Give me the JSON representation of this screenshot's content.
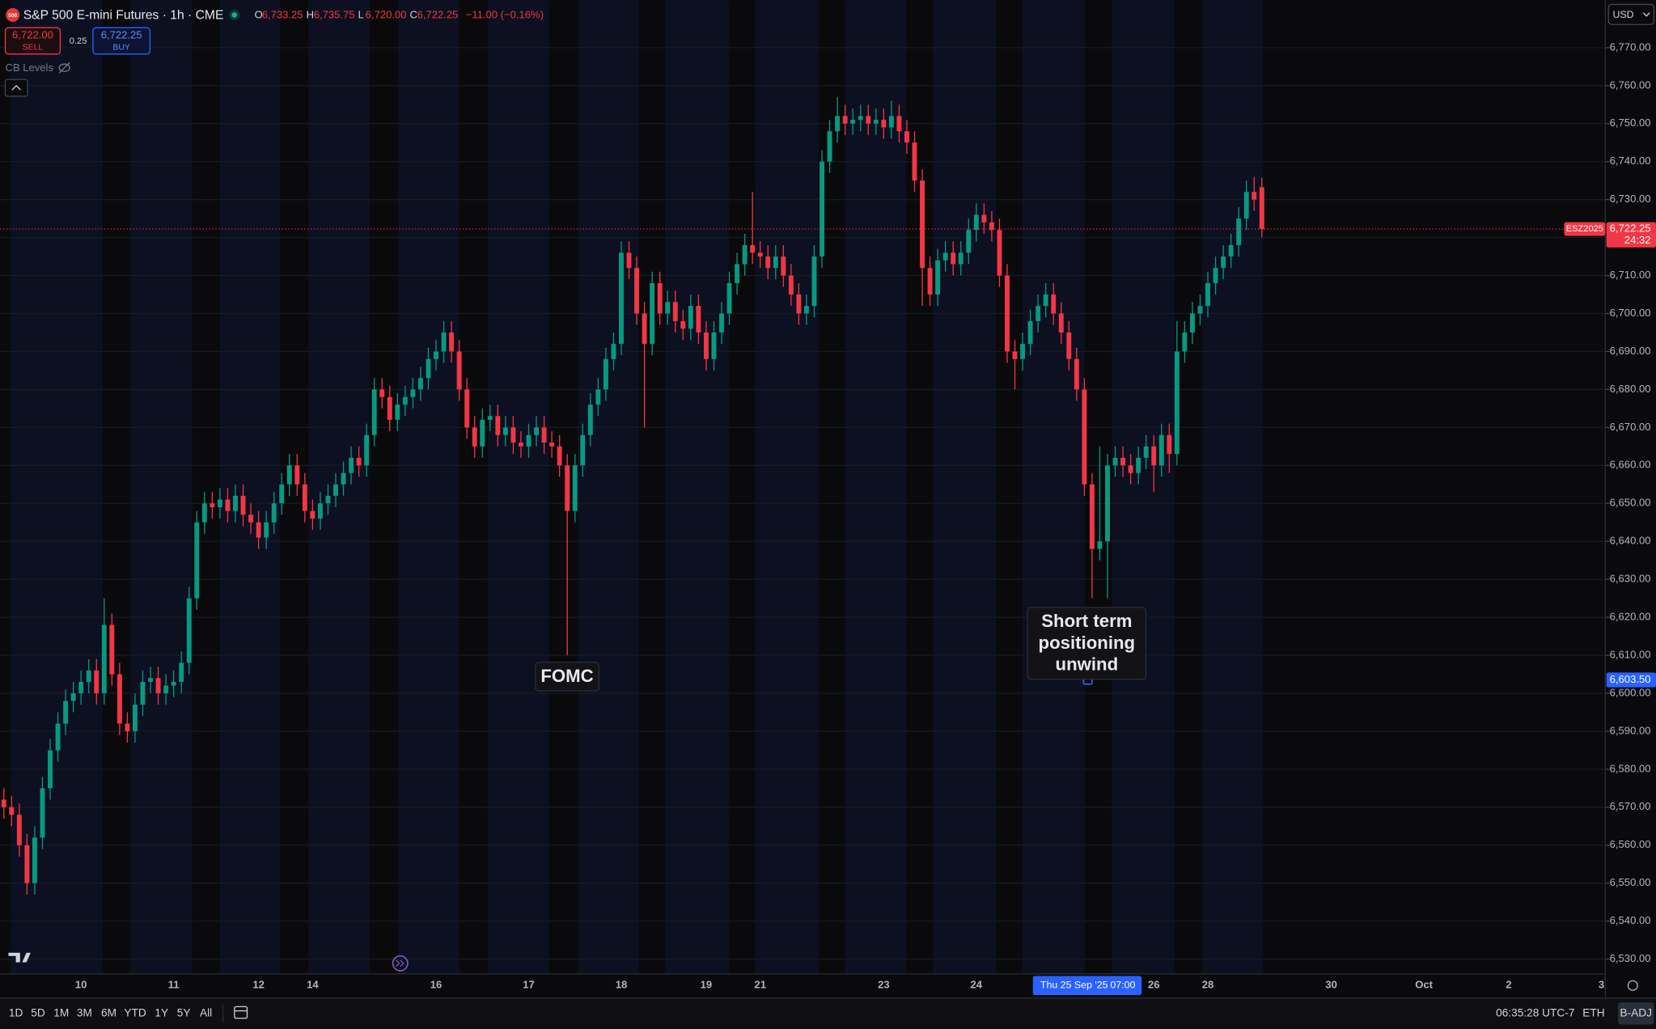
{
  "ui": {
    "title": "S&P 500 E-mini Futures · 1h · CME",
    "ohlc": [
      {
        "k": "O",
        "v": "6,733.25"
      },
      {
        "k": "H",
        "v": "6,735.75"
      },
      {
        "k": "L",
        "v": "6,720.00"
      },
      {
        "k": "C",
        "v": "6,722.25"
      }
    ],
    "change": "−11.00 (−0.16%)",
    "sell_price": "6,722.00",
    "sell": "SELL",
    "spread": "0.25",
    "buy_price": "6,722.25",
    "buy": "BUY",
    "indicator": "CB Levels",
    "currency": "USD",
    "ranges": [
      "1D",
      "5D",
      "1M",
      "3M",
      "6M",
      "YTD",
      "1Y",
      "5Y",
      "All"
    ],
    "clock": "06:35:28 UTC-7",
    "session": "ETH",
    "adjust": "B-ADJ",
    "logo_badge": "500"
  },
  "chart_data": {
    "type": "candlestick",
    "up_color": "#089981",
    "down_color": "#f23645",
    "categories": [
      null,
      null,
      null,
      null,
      null,
      null,
      null,
      null,
      null,
      null,
      "10",
      null,
      null,
      null,
      null,
      null,
      null,
      null,
      null,
      null,
      null,
      null,
      "11",
      null,
      null,
      null,
      null,
      null,
      null,
      null,
      null,
      null,
      null,
      "12",
      null,
      null,
      null,
      null,
      null,
      null,
      "14",
      null,
      null,
      null,
      null,
      null,
      null,
      null,
      null,
      null,
      null,
      null,
      null,
      null,
      null,
      null,
      "16",
      null,
      null,
      null,
      null,
      null,
      null,
      null,
      null,
      null,
      null,
      null,
      "17",
      null,
      null,
      null,
      null,
      null,
      null,
      null,
      null,
      null,
      null,
      null,
      "18",
      null,
      null,
      null,
      null,
      null,
      null,
      null,
      null,
      null,
      null,
      "19",
      null,
      null,
      null,
      null,
      null,
      null,
      "21",
      null,
      null,
      null,
      null,
      null,
      null,
      null,
      null,
      null,
      null,
      null,
      null,
      null,
      null,
      null,
      "23",
      null,
      null,
      null,
      null,
      null,
      null,
      null,
      null,
      null,
      null,
      null,
      "24",
      null,
      null,
      null,
      null,
      null,
      null,
      null,
      null,
      null,
      null,
      null,
      null,
      null,
      null,
      null,
      null,
      null,
      null,
      null,
      null,
      null,
      null,
      "26",
      null,
      null,
      null,
      null,
      null,
      null,
      "28",
      null,
      null,
      null,
      null,
      null,
      null,
      null
    ],
    "future_categories": [
      null,
      null,
      null,
      null,
      null,
      null,
      null,
      null,
      "30",
      null,
      null,
      null,
      null,
      null,
      null,
      null,
      null,
      null,
      null,
      null,
      "Oct",
      null,
      null,
      null,
      null,
      null,
      null,
      null,
      null,
      null,
      null,
      "2",
      null,
      null,
      null,
      null,
      null,
      null,
      null,
      null,
      null,
      null,
      null,
      "3"
    ],
    "open": [
      6572,
      6570,
      6568,
      6560,
      6550,
      6562,
      6575,
      6585,
      6592,
      6598,
      6600,
      6603,
      6606,
      6600,
      6618,
      6605,
      6592,
      6590,
      6597,
      6603,
      6604,
      6600,
      6602,
      6603,
      6608,
      6625,
      6645,
      6650,
      6649,
      6651,
      6648,
      6652,
      6647,
      6645,
      6641,
      6645,
      6650,
      6655,
      6660,
      6655,
      6648,
      6646,
      6650,
      6652,
      6655,
      6658,
      6662,
      6660,
      6668,
      6680,
      6678,
      6672,
      6676,
      6678,
      6680,
      6683,
      6688,
      6690,
      6695,
      6690,
      6680,
      6670,
      6665,
      6672,
      6673,
      6668,
      6670,
      6666,
      6665,
      6668,
      6670,
      6666,
      6665,
      6660,
      6648,
      6660,
      6668,
      6676,
      6680,
      6688,
      6692,
      6716,
      6712,
      6700,
      6692,
      6708,
      6700,
      6703,
      6698,
      6696,
      6702,
      6695,
      6688,
      6695,
      6700,
      6708,
      6713,
      6718,
      6716,
      6715,
      6712,
      6715,
      6710,
      6705,
      6700,
      6702,
      6715,
      6740,
      6748,
      6752,
      6750,
      6751,
      6752,
      6750,
      6751,
      6749,
      6752,
      6748,
      6745,
      6735,
      6712,
      6705,
      6714,
      6716,
      6713,
      6716,
      6722,
      6726,
      6724,
      6722,
      6710,
      6690,
      6688,
      6692,
      6698,
      6702,
      6705,
      6700,
      6695,
      6688,
      6680,
      6655,
      6638,
      6640,
      6660,
      6662,
      6660,
      6658,
      6662,
      6665,
      6660,
      6668,
      6663,
      6690,
      6695,
      6700,
      6702,
      6708,
      6712,
      6715,
      6718,
      6725,
      6732,
      6733.25
    ],
    "high": [
      6575,
      6573,
      6571,
      6563,
      6565,
      6578,
      6588,
      6595,
      6601,
      6603,
      6606,
      6609,
      6609,
      6625,
      6621,
      6608,
      6595,
      6600,
      6606,
      6607,
      6607,
      6605,
      6606,
      6611,
      6628,
      6648,
      6653,
      6653,
      6654,
      6654,
      6655,
      6655,
      6650,
      6648,
      6648,
      6653,
      6658,
      6663,
      6663,
      6658,
      6651,
      6653,
      6655,
      6658,
      6661,
      6665,
      6665,
      6671,
      6683,
      6683,
      6681,
      6679,
      6681,
      6683,
      6686,
      6691,
      6693,
      6698,
      6698,
      6693,
      6683,
      6673,
      6675,
      6676,
      6676,
      6673,
      6673,
      6669,
      6671,
      6673,
      6673,
      6669,
      6668,
      6663,
      6663,
      6671,
      6679,
      6683,
      6691,
      6695,
      6719,
      6719,
      6715,
      6703,
      6711,
      6711,
      6706,
      6706,
      6701,
      6705,
      6705,
      6698,
      6698,
      6703,
      6711,
      6716,
      6721,
      6732,
      6719,
      6718,
      6718,
      6718,
      6713,
      6708,
      6705,
      6718,
      6743,
      6751,
      6757,
      6755,
      6754,
      6755,
      6755,
      6754,
      6754,
      6756,
      6755,
      6751,
      6748,
      6738,
      6715,
      6717,
      6719,
      6719,
      6719,
      6725,
      6729,
      6729,
      6727,
      6725,
      6713,
      6693,
      6695,
      6701,
      6705,
      6708,
      6708,
      6703,
      6698,
      6691,
      6683,
      6658,
      6665,
      6663,
      6665,
      6665,
      6663,
      6665,
      6668,
      6668,
      6671,
      6671,
      6698,
      6698,
      6703,
      6705,
      6711,
      6715,
      6718,
      6721,
      6728,
      6735,
      6736,
      6735.75
    ],
    "low": [
      6567,
      6565,
      6557,
      6547,
      6547,
      6559,
      6572,
      6582,
      6589,
      6595,
      6597,
      6600,
      6597,
      6597,
      6602,
      6589,
      6587,
      6587,
      6594,
      6600,
      6597,
      6597,
      6599,
      6600,
      6605,
      6622,
      6642,
      6646,
      6646,
      6645,
      6645,
      6644,
      6642,
      6638,
      6638,
      6642,
      6647,
      6652,
      6652,
      6645,
      6643,
      6643,
      6647,
      6649,
      6652,
      6655,
      6657,
      6657,
      6665,
      6675,
      6669,
      6669,
      6673,
      6675,
      6677,
      6680,
      6685,
      6687,
      6687,
      6677,
      6667,
      6662,
      6662,
      6669,
      6665,
      6665,
      6663,
      6662,
      6662,
      6665,
      6663,
      6662,
      6657,
      6610,
      6645,
      6657,
      6665,
      6673,
      6677,
      6685,
      6689,
      6709,
      6697,
      6670,
      6689,
      6697,
      6697,
      6695,
      6693,
      6693,
      6692,
      6685,
      6685,
      6692,
      6697,
      6705,
      6710,
      6713,
      6712,
      6709,
      6709,
      6707,
      6702,
      6697,
      6697,
      6699,
      6712,
      6737,
      6745,
      6747,
      6747,
      6748,
      6747,
      6747,
      6746,
      6746,
      6745,
      6742,
      6732,
      6702,
      6702,
      6702,
      6711,
      6710,
      6710,
      6713,
      6719,
      6721,
      6719,
      6707,
      6687,
      6680,
      6685,
      6689,
      6695,
      6699,
      6697,
      6692,
      6685,
      6677,
      6652,
      6625,
      6635,
      6625,
      6657,
      6657,
      6655,
      6655,
      6659,
      6653,
      6657,
      6658,
      6660,
      6687,
      6692,
      6697,
      6699,
      6705,
      6709,
      6712,
      6715,
      6722,
      6727,
      6720
    ],
    "close": [
      6570,
      6568,
      6560,
      6550,
      6562,
      6575,
      6585,
      6592,
      6598,
      6600,
      6603,
      6606,
      6600,
      6618,
      6605,
      6592,
      6590,
      6597,
      6603,
      6604,
      6600,
      6602,
      6603,
      6608,
      6625,
      6645,
      6650,
      6649,
      6651,
      6648,
      6652,
      6647,
      6645,
      6641,
      6645,
      6650,
      6655,
      6660,
      6655,
      6648,
      6646,
      6650,
      6652,
      6655,
      6658,
      6662,
      6660,
      6668,
      6680,
      6678,
      6672,
      6676,
      6678,
      6680,
      6683,
      6688,
      6690,
      6695,
      6690,
      6680,
      6670,
      6665,
      6672,
      6673,
      6668,
      6670,
      6666,
      6665,
      6668,
      6670,
      6666,
      6665,
      6660,
      6648,
      6660,
      6668,
      6676,
      6680,
      6688,
      6692,
      6716,
      6712,
      6700,
      6692,
      6708,
      6700,
      6703,
      6698,
      6696,
      6702,
      6695,
      6688,
      6695,
      6700,
      6708,
      6713,
      6718,
      6716,
      6715,
      6712,
      6715,
      6710,
      6705,
      6700,
      6702,
      6715,
      6740,
      6748,
      6752,
      6750,
      6751,
      6752,
      6750,
      6751,
      6749,
      6752,
      6748,
      6745,
      6735,
      6712,
      6705,
      6714,
      6716,
      6713,
      6716,
      6722,
      6726,
      6724,
      6722,
      6710,
      6690,
      6688,
      6692,
      6698,
      6702,
      6705,
      6700,
      6695,
      6688,
      6680,
      6655,
      6638,
      6640,
      6660,
      6662,
      6660,
      6658,
      6662,
      6665,
      6660,
      6668,
      6663,
      6690,
      6695,
      6700,
      6702,
      6708,
      6712,
      6715,
      6718,
      6725,
      6732,
      6730,
      6722.25
    ],
    "ylim": [
      6526.1,
      6782.5
    ],
    "yticks": [
      {
        "value": 6530,
        "label": "6,530.00"
      },
      {
        "value": 6540,
        "label": "6,540.00"
      },
      {
        "value": 6550,
        "label": "6,550.00"
      },
      {
        "value": 6560,
        "label": "6,560.00"
      },
      {
        "value": 6570,
        "label": "6,570.00"
      },
      {
        "value": 6580,
        "label": "6,580.00"
      },
      {
        "value": 6590,
        "label": "6,590.00"
      },
      {
        "value": 6600,
        "label": "6,600.00"
      },
      {
        "value": 6610,
        "label": "6,610.00"
      },
      {
        "value": 6620,
        "label": "6,620.00"
      },
      {
        "value": 6630,
        "label": "6,630.00"
      },
      {
        "value": 6640,
        "label": "6,640.00"
      },
      {
        "value": 6650,
        "label": "6,650.00"
      },
      {
        "value": 6660,
        "label": "6,660.00"
      },
      {
        "value": 6670,
        "label": "6,670.00"
      },
      {
        "value": 6680,
        "label": "6,680.00"
      },
      {
        "value": 6690,
        "label": "6,690.00"
      },
      {
        "value": 6700,
        "label": "6,700.00"
      },
      {
        "value": 6710,
        "label": "6,710.00"
      },
      {
        "value": 6720,
        "label": "6,720.00"
      },
      {
        "value": 6730,
        "label": "6,730.00"
      },
      {
        "value": 6740,
        "label": "6,740.00"
      },
      {
        "value": 6750,
        "label": "6,750.00"
      },
      {
        "value": 6760,
        "label": "6,760.00"
      },
      {
        "value": 6770,
        "label": "6,770.00"
      }
    ],
    "grid": true,
    "last": {
      "value": 6722.25,
      "label": "6,722.25",
      "symbol": "ESZ2025",
      "countdown": "24:32"
    },
    "crosshair": {
      "price": {
        "value": 6603.5,
        "label": "6,603.50"
      },
      "date": "Thu 25 Sep '25",
      "time": "07:00"
    },
    "annotations": [
      {
        "lines": [
          "FOMC"
        ]
      },
      {
        "lines": [
          "Short term",
          "positioning",
          "unwind"
        ]
      }
    ]
  }
}
